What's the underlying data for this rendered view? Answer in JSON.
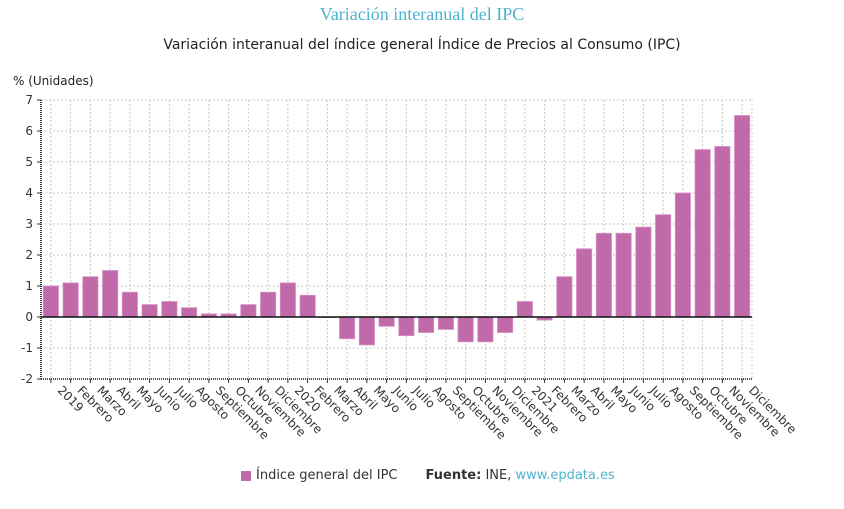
{
  "header": {
    "top_title": "Variación interanual del IPC"
  },
  "footer": {
    "legend_label": "Índice general del IPC",
    "source_label": "Fuente:",
    "source_text": "INE,",
    "source_link": "www.epdata.es"
  },
  "colors": {
    "bar": "#c06aaa",
    "title": "#4fb3cf"
  },
  "chart_data": {
    "type": "bar",
    "title": "Variación interanual del índice general Índice de Precios al Consumo (IPC)",
    "ylabel": "% (Unidades)",
    "xlabel": "",
    "ylim": [
      -2,
      7
    ],
    "yticks": [
      7,
      6,
      5,
      4,
      3,
      2,
      1,
      0,
      -1,
      -2
    ],
    "grid": true,
    "legend": "bottom",
    "categories": [
      "2019",
      "Febrero",
      "Marzo",
      "Abril",
      "Mayo",
      "Junio",
      "Julio",
      "Agosto",
      "Septiembre",
      "Octubre",
      "Noviembre",
      "Diciembre",
      "2020",
      "Febrero",
      "Marzo",
      "Abril",
      "Mayo",
      "Junio",
      "Julio",
      "Agosto",
      "Septiembre",
      "Octubre",
      "Noviembre",
      "Diciembre",
      "2021",
      "Febrero",
      "Marzo",
      "Abril",
      "Mayo",
      "Junio",
      "Julio",
      "Agosto",
      "Septiembre",
      "Octubre",
      "Noviembre",
      "Diciembre"
    ],
    "series": [
      {
        "name": "Índice general del IPC",
        "values": [
          1.0,
          1.1,
          1.3,
          1.5,
          0.8,
          0.4,
          0.5,
          0.3,
          0.1,
          0.1,
          0.4,
          0.8,
          1.1,
          0.7,
          0.0,
          -0.7,
          -0.9,
          -0.3,
          -0.6,
          -0.5,
          -0.4,
          -0.8,
          -0.8,
          -0.5,
          0.5,
          -0.1,
          1.3,
          2.2,
          2.7,
          2.7,
          2.9,
          3.3,
          4.0,
          5.4,
          5.5,
          6.5
        ]
      }
    ]
  }
}
